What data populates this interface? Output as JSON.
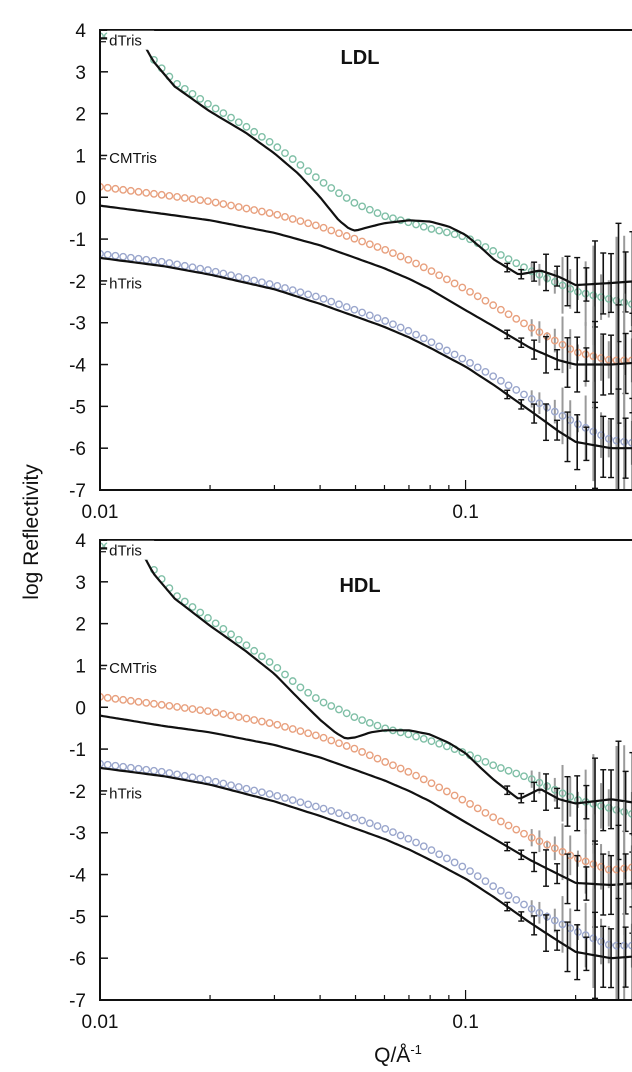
{
  "figure": {
    "ylabel": "log Reflectivity",
    "xlabel_main": "Q/Å",
    "xlabel_sup": "-1"
  },
  "chart_data": [
    {
      "type": "line",
      "title": "LDL",
      "xscale": "log",
      "xlim": [
        0.01,
        0.3
      ],
      "ylim": [
        -7,
        4
      ],
      "x_ticks": [
        0.01,
        0.1
      ],
      "x_tick_labels": [
        "0.01",
        "0.1"
      ],
      "y_ticks": [
        4,
        3,
        2,
        1,
        0,
        -1,
        -2,
        -3,
        -4,
        -5,
        -6,
        -7
      ],
      "y_tick_labels": [
        "4",
        "3",
        "2",
        "1",
        "0",
        "-1",
        "-2",
        "-3",
        "-4",
        "-5",
        "-6",
        "-7"
      ],
      "colors": {
        "dTris": "#7fbfa6",
        "CMTris": "#e8a07e",
        "hTris": "#9aa6cc",
        "fit": "#111111",
        "errbar": "#9a9a9a"
      },
      "series": [
        {
          "name": "dTris",
          "x": [
            0.01,
            0.012,
            0.013,
            0.014,
            0.016,
            0.02,
            0.025,
            0.03,
            0.035,
            0.04,
            0.045,
            0.05,
            0.06,
            0.07,
            0.08,
            0.09,
            0.1,
            0.12,
            0.15,
            0.2,
            0.3
          ],
          "y": [
            3.85,
            3.85,
            3.82,
            3.3,
            2.75,
            2.2,
            1.7,
            1.25,
            0.8,
            0.4,
            0.1,
            -0.15,
            -0.45,
            -0.6,
            -0.75,
            -0.85,
            -0.95,
            -1.3,
            -1.75,
            -2.25,
            -2.6
          ]
        },
        {
          "name": "dTris-fit",
          "x": [
            0.01,
            0.012,
            0.013,
            0.014,
            0.016,
            0.02,
            0.025,
            0.03,
            0.035,
            0.04,
            0.045,
            0.048,
            0.05,
            0.055,
            0.06,
            0.07,
            0.08,
            0.09,
            0.1,
            0.11,
            0.12,
            0.14,
            0.16,
            0.18,
            0.2,
            0.25,
            0.3
          ],
          "y": [
            3.8,
            3.8,
            3.75,
            3.25,
            2.65,
            2.05,
            1.55,
            1.05,
            0.55,
            0.0,
            -0.55,
            -0.75,
            -0.8,
            -0.7,
            -0.62,
            -0.55,
            -0.58,
            -0.7,
            -0.9,
            -1.2,
            -1.5,
            -1.85,
            -1.75,
            -1.9,
            -2.1,
            -2.05,
            -2.0
          ]
        },
        {
          "name": "CMTris",
          "x": [
            0.01,
            0.015,
            0.02,
            0.03,
            0.04,
            0.05,
            0.06,
            0.07,
            0.08,
            0.1,
            0.12,
            0.15,
            0.2,
            0.25,
            0.3
          ],
          "y": [
            0.25,
            0.05,
            -0.1,
            -0.4,
            -0.7,
            -1.0,
            -1.25,
            -1.5,
            -1.75,
            -2.2,
            -2.6,
            -3.1,
            -3.7,
            -3.9,
            -3.9
          ]
        },
        {
          "name": "CMTris-fit",
          "x": [
            0.01,
            0.015,
            0.02,
            0.03,
            0.04,
            0.05,
            0.06,
            0.07,
            0.08,
            0.1,
            0.12,
            0.15,
            0.18,
            0.2,
            0.25,
            0.3
          ],
          "y": [
            -0.2,
            -0.4,
            -0.55,
            -0.85,
            -1.15,
            -1.45,
            -1.7,
            -1.95,
            -2.2,
            -2.7,
            -3.1,
            -3.6,
            -3.9,
            -4.0,
            -4.0,
            -3.95
          ]
        },
        {
          "name": "hTris",
          "x": [
            0.01,
            0.015,
            0.02,
            0.03,
            0.04,
            0.05,
            0.06,
            0.07,
            0.08,
            0.1,
            0.12,
            0.15,
            0.2,
            0.25,
            0.3
          ],
          "y": [
            -1.35,
            -1.55,
            -1.75,
            -2.1,
            -2.4,
            -2.7,
            -2.95,
            -3.2,
            -3.45,
            -3.9,
            -4.3,
            -4.8,
            -5.4,
            -5.8,
            -5.9
          ]
        },
        {
          "name": "hTris-fit",
          "x": [
            0.01,
            0.015,
            0.02,
            0.03,
            0.04,
            0.05,
            0.06,
            0.07,
            0.08,
            0.1,
            0.12,
            0.15,
            0.18,
            0.2,
            0.25,
            0.3
          ],
          "y": [
            -1.45,
            -1.65,
            -1.85,
            -2.2,
            -2.55,
            -2.85,
            -3.1,
            -3.35,
            -3.6,
            -4.05,
            -4.5,
            -5.1,
            -5.6,
            -5.85,
            -6.0,
            -6.0
          ]
        }
      ],
      "annotations": [
        {
          "text": "dTris",
          "x": 0.0102,
          "y": 3.6
        },
        {
          "text": "CMTris",
          "x": 0.0102,
          "y": 0.8
        },
        {
          "text": "hTris",
          "x": 0.0102,
          "y": -2.2
        }
      ]
    },
    {
      "type": "line",
      "title": "HDL",
      "xscale": "log",
      "xlim": [
        0.01,
        0.3
      ],
      "ylim": [
        -7,
        4
      ],
      "x_ticks": [
        0.01,
        0.1
      ],
      "x_tick_labels": [
        "0.01",
        "0.1"
      ],
      "y_ticks": [
        4,
        3,
        2,
        1,
        0,
        -1,
        -2,
        -3,
        -4,
        -5,
        -6,
        -7
      ],
      "y_tick_labels": [
        "4",
        "3",
        "2",
        "1",
        "0",
        "-1",
        "-2",
        "-3",
        "-4",
        "-5",
        "-6",
        "-7"
      ],
      "colors": {
        "dTris": "#7fbfa6",
        "CMTris": "#e8a07e",
        "hTris": "#9aa6cc",
        "fit": "#111111",
        "errbar": "#9a9a9a"
      },
      "series": [
        {
          "name": "dTris",
          "x": [
            0.01,
            0.012,
            0.013,
            0.014,
            0.016,
            0.02,
            0.025,
            0.03,
            0.035,
            0.04,
            0.045,
            0.05,
            0.06,
            0.07,
            0.08,
            0.09,
            0.1,
            0.12,
            0.15,
            0.2,
            0.3
          ],
          "y": [
            3.85,
            3.85,
            3.8,
            3.3,
            2.7,
            2.1,
            1.5,
            1.0,
            0.5,
            0.15,
            -0.05,
            -0.25,
            -0.5,
            -0.65,
            -0.8,
            -0.95,
            -1.1,
            -1.4,
            -1.7,
            -2.2,
            -2.6
          ]
        },
        {
          "name": "dTris-fit",
          "x": [
            0.01,
            0.012,
            0.013,
            0.014,
            0.016,
            0.02,
            0.025,
            0.03,
            0.035,
            0.04,
            0.044,
            0.047,
            0.05,
            0.055,
            0.06,
            0.07,
            0.08,
            0.09,
            0.1,
            0.11,
            0.12,
            0.14,
            0.16,
            0.18,
            0.2,
            0.25,
            0.3
          ],
          "y": [
            3.8,
            3.8,
            3.72,
            3.2,
            2.6,
            1.95,
            1.35,
            0.8,
            0.2,
            -0.3,
            -0.6,
            -0.75,
            -0.72,
            -0.6,
            -0.55,
            -0.55,
            -0.65,
            -0.85,
            -1.1,
            -1.45,
            -1.75,
            -2.2,
            -1.95,
            -2.2,
            -2.3,
            -2.2,
            -2.3
          ]
        },
        {
          "name": "CMTris",
          "x": [
            0.01,
            0.015,
            0.02,
            0.03,
            0.04,
            0.05,
            0.06,
            0.07,
            0.08,
            0.1,
            0.12,
            0.15,
            0.2,
            0.25,
            0.3
          ],
          "y": [
            0.25,
            0.05,
            -0.1,
            -0.4,
            -0.7,
            -1.0,
            -1.3,
            -1.55,
            -1.8,
            -2.25,
            -2.65,
            -3.1,
            -3.6,
            -3.9,
            -3.8
          ]
        },
        {
          "name": "CMTris-fit",
          "x": [
            0.01,
            0.015,
            0.02,
            0.03,
            0.04,
            0.05,
            0.06,
            0.07,
            0.08,
            0.1,
            0.12,
            0.15,
            0.18,
            0.2,
            0.25,
            0.3
          ],
          "y": [
            -0.2,
            -0.45,
            -0.6,
            -0.9,
            -1.2,
            -1.5,
            -1.75,
            -2.0,
            -2.25,
            -2.75,
            -3.15,
            -3.65,
            -4.0,
            -4.2,
            -4.25,
            -4.2
          ]
        },
        {
          "name": "hTris",
          "x": [
            0.01,
            0.015,
            0.02,
            0.03,
            0.04,
            0.05,
            0.06,
            0.07,
            0.08,
            0.1,
            0.12,
            0.15,
            0.2,
            0.25,
            0.3
          ],
          "y": [
            -1.35,
            -1.55,
            -1.75,
            -2.1,
            -2.4,
            -2.65,
            -2.9,
            -3.15,
            -3.4,
            -3.85,
            -4.3,
            -4.8,
            -5.35,
            -5.7,
            -5.7
          ]
        },
        {
          "name": "hTris-fit",
          "x": [
            0.01,
            0.015,
            0.02,
            0.03,
            0.04,
            0.05,
            0.06,
            0.07,
            0.08,
            0.1,
            0.12,
            0.15,
            0.18,
            0.2,
            0.25,
            0.3
          ],
          "y": [
            -1.45,
            -1.65,
            -1.85,
            -2.25,
            -2.6,
            -2.9,
            -3.15,
            -3.4,
            -3.65,
            -4.1,
            -4.55,
            -5.15,
            -5.6,
            -5.85,
            -6.0,
            -5.95
          ]
        }
      ],
      "annotations": [
        {
          "text": "dTris",
          "x": 0.0102,
          "y": 3.6
        },
        {
          "text": "CMTris",
          "x": 0.0102,
          "y": 0.8
        },
        {
          "text": "hTris",
          "x": 0.0102,
          "y": -2.2
        }
      ]
    }
  ]
}
